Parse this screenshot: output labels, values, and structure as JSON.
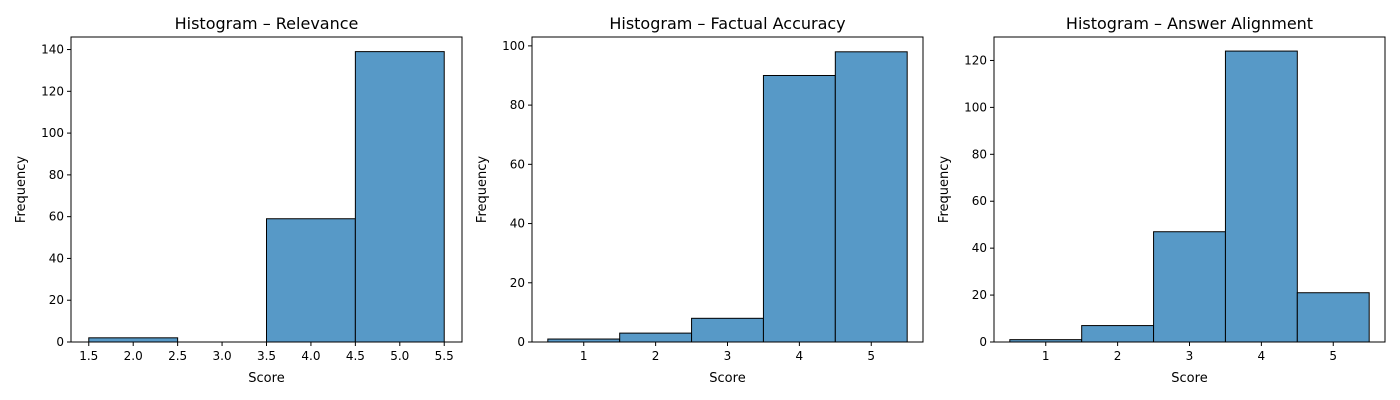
{
  "chart_data": [
    {
      "type": "bar",
      "title": "Histogram – Relevance",
      "xlabel": "Score",
      "ylabel": "Frequency",
      "xlim": [
        1.3,
        5.7
      ],
      "ylim": [
        0,
        146
      ],
      "xticks": [
        1.5,
        2.0,
        2.5,
        3.0,
        3.5,
        4.0,
        4.5,
        5.0,
        5.5
      ],
      "xtick_labels": [
        "1.5",
        "2.0",
        "2.5",
        "3.0",
        "3.5",
        "4.0",
        "4.5",
        "5.0",
        "5.5"
      ],
      "yticks": [
        0,
        20,
        40,
        60,
        80,
        100,
        120,
        140
      ],
      "bins": [
        {
          "from": 1.5,
          "to": 2.5,
          "value": 2
        },
        {
          "from": 2.5,
          "to": 3.5,
          "value": 0
        },
        {
          "from": 3.5,
          "to": 4.5,
          "value": 59
        },
        {
          "from": 4.5,
          "to": 5.5,
          "value": 139
        }
      ]
    },
    {
      "type": "bar",
      "title": "Histogram – Factual Accuracy",
      "xlabel": "Score",
      "ylabel": "Frequency",
      "xlim": [
        0.28,
        5.72
      ],
      "ylim": [
        0,
        103
      ],
      "xticks": [
        1,
        2,
        3,
        4,
        5
      ],
      "xtick_labels": [
        "1",
        "2",
        "3",
        "4",
        "5"
      ],
      "yticks": [
        0,
        20,
        40,
        60,
        80,
        100
      ],
      "bins": [
        {
          "from": 0.5,
          "to": 1.5,
          "value": 1
        },
        {
          "from": 1.5,
          "to": 2.5,
          "value": 3
        },
        {
          "from": 2.5,
          "to": 3.5,
          "value": 8
        },
        {
          "from": 3.5,
          "to": 4.5,
          "value": 90
        },
        {
          "from": 4.5,
          "to": 5.5,
          "value": 98
        }
      ]
    },
    {
      "type": "bar",
      "title": "Histogram – Answer Alignment",
      "xlabel": "Score",
      "ylabel": "Frequency",
      "xlim": [
        0.28,
        5.72
      ],
      "ylim": [
        0,
        130
      ],
      "xticks": [
        1,
        2,
        3,
        4,
        5
      ],
      "xtick_labels": [
        "1",
        "2",
        "3",
        "4",
        "5"
      ],
      "yticks": [
        0,
        20,
        40,
        60,
        80,
        100,
        120
      ],
      "bins": [
        {
          "from": 0.5,
          "to": 1.5,
          "value": 1
        },
        {
          "from": 1.5,
          "to": 2.5,
          "value": 7
        },
        {
          "from": 2.5,
          "to": 3.5,
          "value": 47
        },
        {
          "from": 3.5,
          "to": 4.5,
          "value": 124
        },
        {
          "from": 4.5,
          "to": 5.5,
          "value": 21
        }
      ]
    }
  ],
  "colors": {
    "bar_fill": "#5799c7",
    "bar_edge": "#000000"
  }
}
